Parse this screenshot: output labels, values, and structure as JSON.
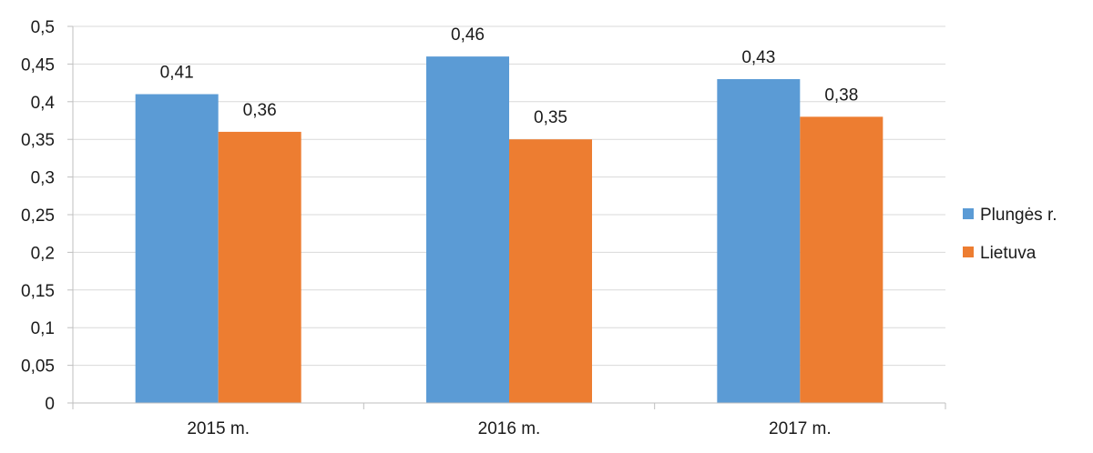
{
  "chart_data": {
    "type": "bar",
    "categories": [
      "2015 m.",
      "2016 m.",
      "2017 m."
    ],
    "series": [
      {
        "name": "Plungės r.",
        "values": [
          0.41,
          0.46,
          0.43
        ],
        "color": "#5B9BD5"
      },
      {
        "name": "Lietuva",
        "values": [
          0.36,
          0.35,
          0.38
        ],
        "color": "#ED7D31"
      }
    ],
    "data_labels": [
      [
        "0,41",
        "0,46",
        "0,43"
      ],
      [
        "0,36",
        "0,35",
        "0,38"
      ]
    ],
    "yticks": [
      0,
      0.05,
      0.1,
      0.15,
      0.2,
      0.25,
      0.3,
      0.35,
      0.4,
      0.45,
      0.5
    ],
    "ytick_labels": [
      "0",
      "0,05",
      "0,1",
      "0,15",
      "0,2",
      "0,25",
      "0,3",
      "0,35",
      "0,4",
      "0,45",
      "0,5"
    ],
    "ylim": [
      0,
      0.5
    ],
    "grid": true,
    "legend_position": "right",
    "gridline_color": "#D9D9D9",
    "axis_color": "#BFBFBF"
  }
}
